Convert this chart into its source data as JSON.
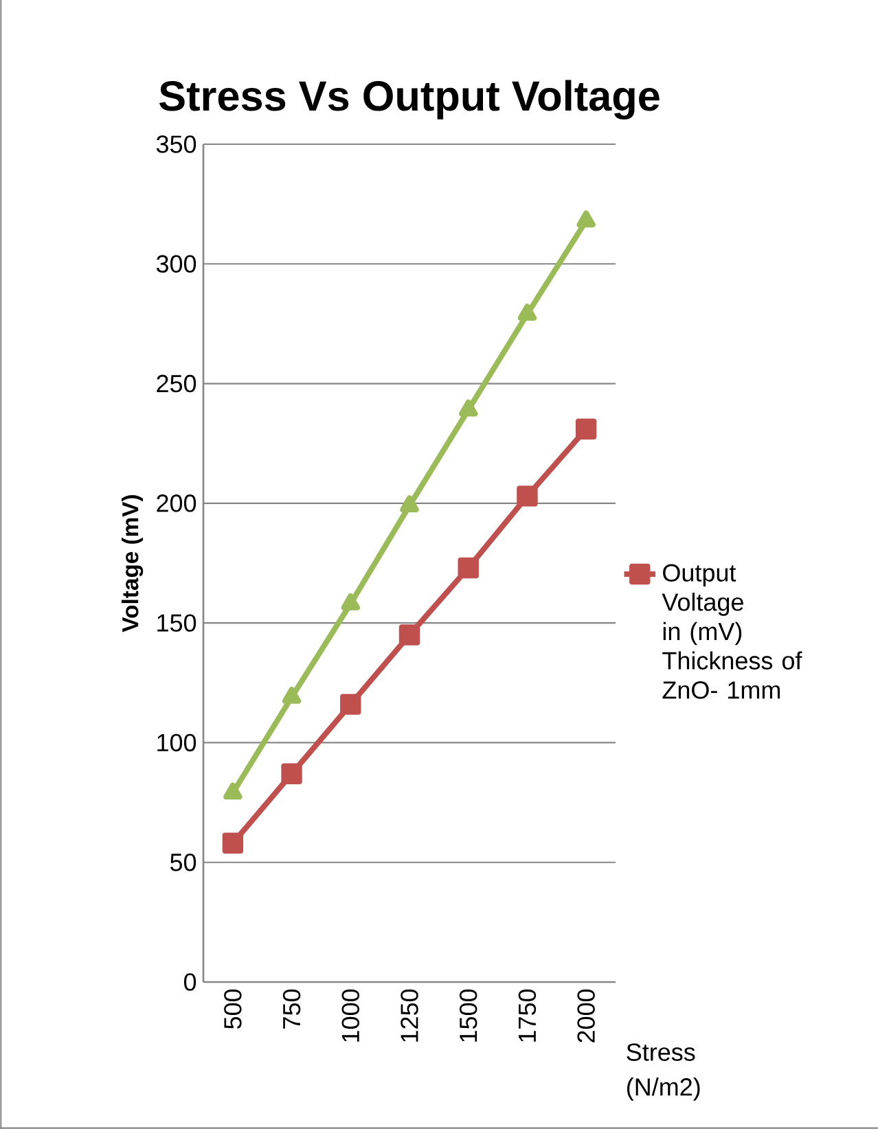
{
  "chart_data": {
    "type": "line",
    "title": "Stress Vs Output Voltage",
    "xlabel": "Stress (N/m2)",
    "ylabel": "Voltage (mV)",
    "categories": [
      "500",
      "750",
      "1000",
      "1250",
      "1500",
      "1750",
      "2000"
    ],
    "series": [
      {
        "name": "Output Voltage in (mV) Thickness of ZnO- 1mm",
        "color": "#c0504d",
        "marker": "square",
        "values": [
          58,
          87,
          116,
          145,
          173,
          203,
          231
        ]
      },
      {
        "color": "#9bbb59",
        "marker": "triangle",
        "values": [
          79,
          119,
          158,
          199,
          239,
          279,
          318
        ]
      }
    ],
    "ylim": [
      0,
      350
    ],
    "yticks": [
      0,
      50,
      100,
      150,
      200,
      250,
      300,
      350
    ],
    "grid": "y",
    "legend": "right",
    "line_style": "solid"
  }
}
